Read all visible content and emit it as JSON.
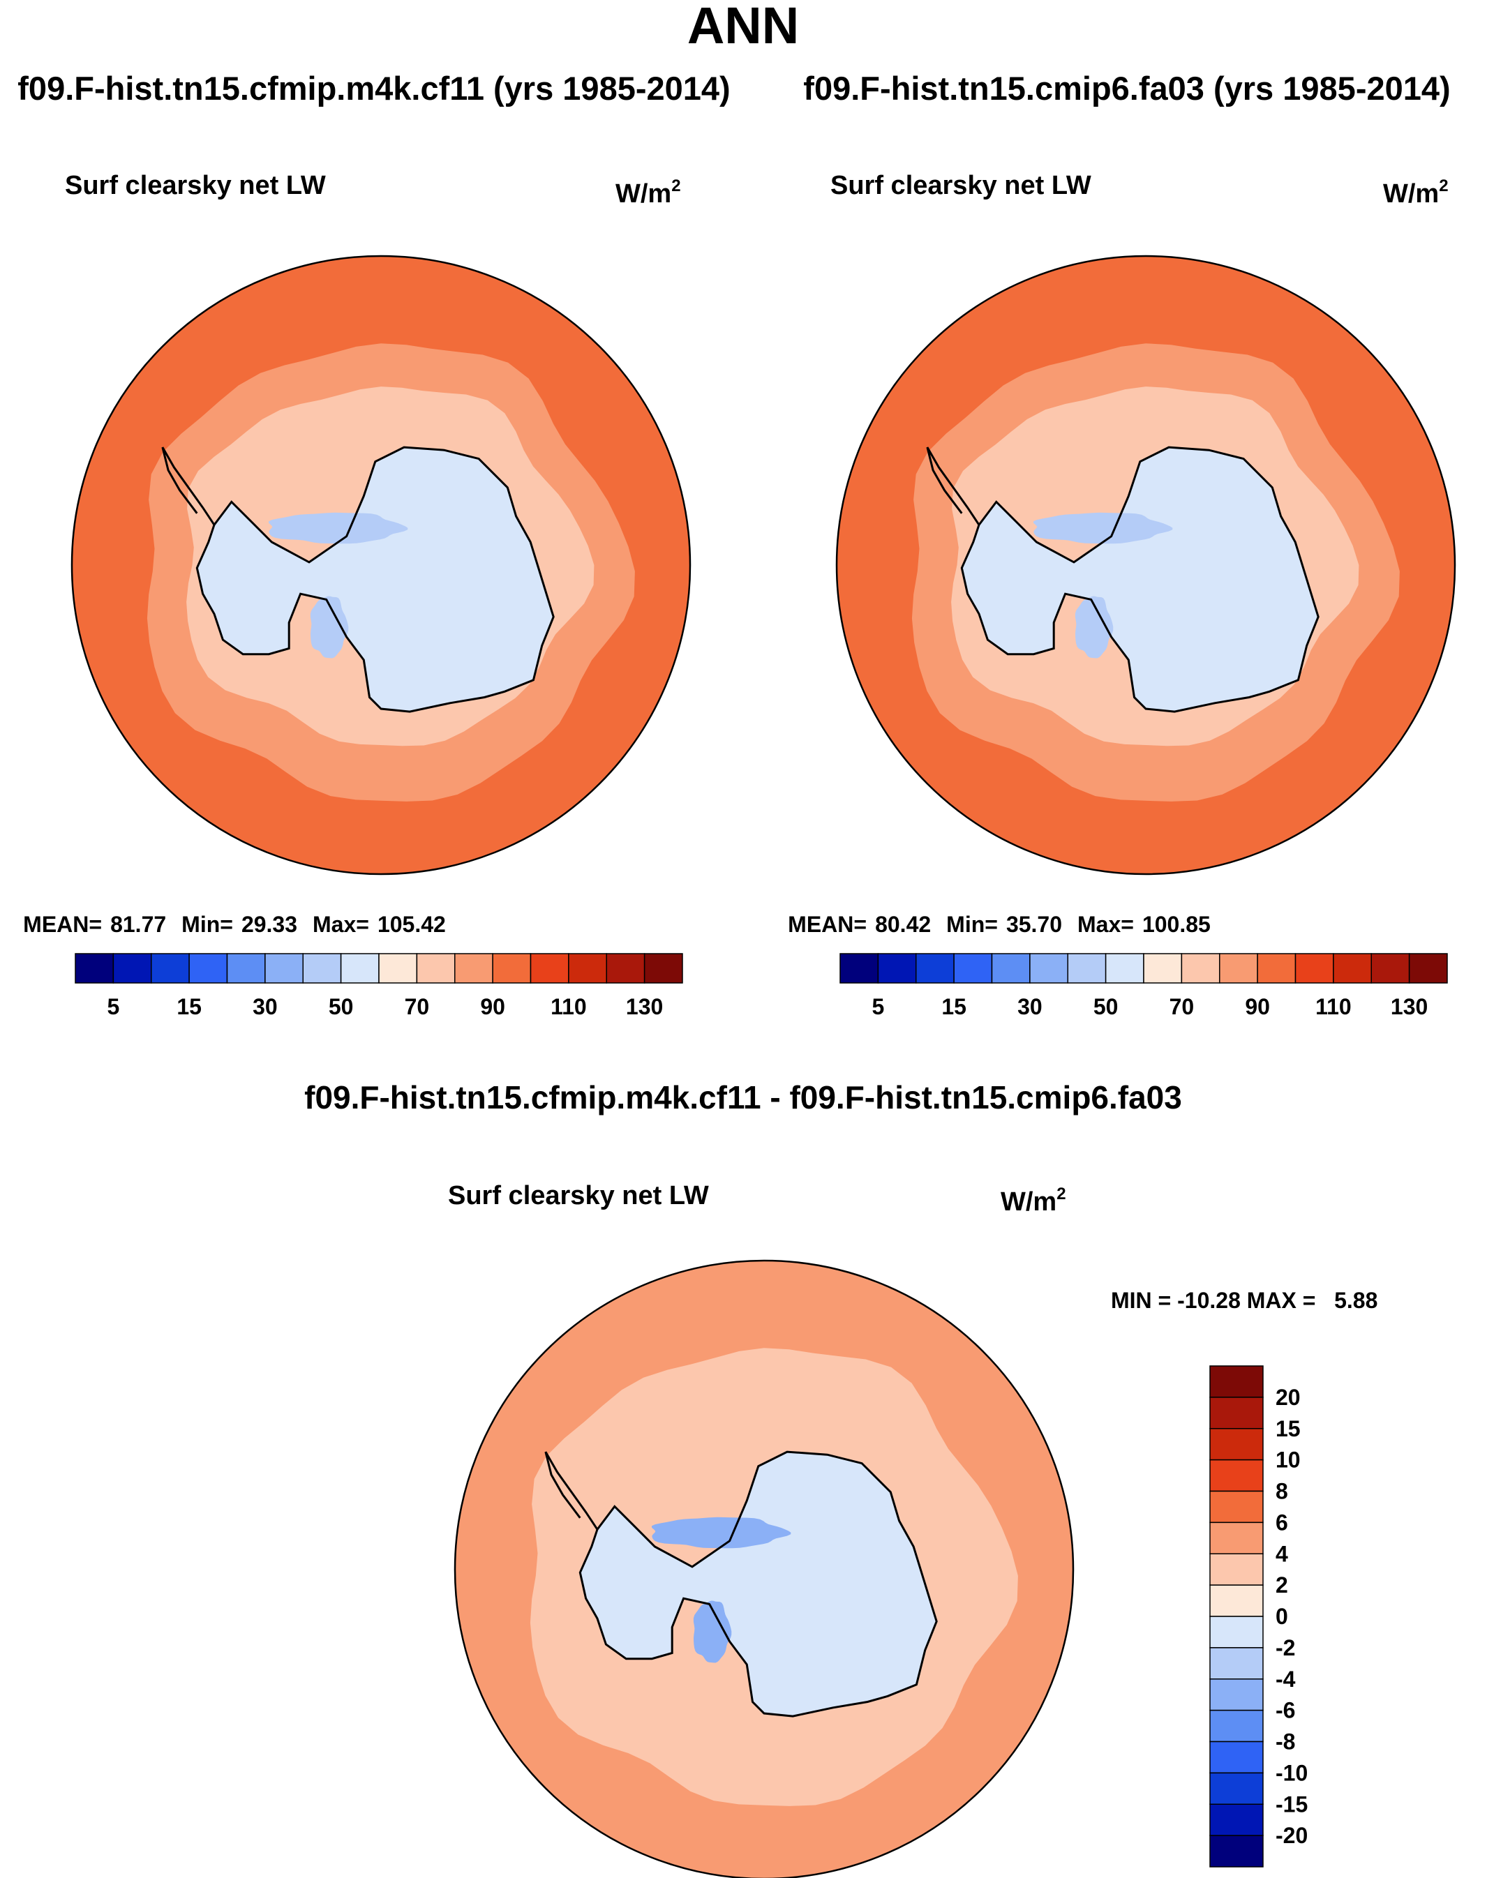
{
  "figure": {
    "season": "ANN",
    "field": "Surf clearsky net LW",
    "units": "W/m",
    "units_sup": "2",
    "diff_title": "f09.F-hist.tn15.cfmip.m4k.cf11 - f09.F-hist.tn15.cmip6.fa03",
    "diff_stats": "MIN = -10.28 MAX =   5.88"
  },
  "colors": {
    "abs": [
      "#00007c",
      "#0016b4",
      "#0d3ed7",
      "#2f63f5",
      "#5d8ef4",
      "#8bb0f6",
      "#b4ccf7",
      "#d7e6fa",
      "#fde8d8",
      "#fcc7ad",
      "#f89b72",
      "#f26c3a",
      "#e8411a",
      "#cc2a0c",
      "#a9180b",
      "#7d0a06"
    ],
    "diff": [
      "#00007c",
      "#0016b4",
      "#0d3ed7",
      "#2f63f5",
      "#5d8ef4",
      "#8bb0f6",
      "#b4ccf7",
      "#d7e6fa",
      "#fde8d8",
      "#fcc7ad",
      "#f89b72",
      "#f26c3a",
      "#e8411a",
      "#cc2a0c",
      "#a9180b",
      "#7d0a06"
    ]
  },
  "chart_data": [
    {
      "type": "heatmap",
      "projection": "south-polar-stereographic",
      "title": "f09.F-hist.tn15.cfmip.m4k.cf11 (yrs 1985-2014)",
      "variable": "Surf clearsky net LW",
      "units": "W/m2",
      "stats": {
        "mean": 81.77,
        "min": 29.33,
        "max": 105.42
      },
      "stats_label": {
        "mean": "MEAN=",
        "min": "Min=",
        "max": "Max="
      },
      "stats_text": {
        "mean": "81.77",
        "min": "29.33",
        "max": "105.42"
      },
      "colorbar_levels": [
        5,
        10,
        15,
        20,
        30,
        40,
        50,
        60,
        70,
        80,
        90,
        100,
        110,
        120,
        130
      ],
      "colorbar_tick_labels": [
        "5",
        "15",
        "30",
        "50",
        "70",
        "90",
        "110",
        "130"
      ],
      "colorbar_orientation": "horizontal",
      "levels_model": {
        "ocean_outer": 95,
        "ocean_band": 85,
        "coast_band": 75,
        "interior": 55,
        "minimum_zone": 45
      }
    },
    {
      "type": "heatmap",
      "projection": "south-polar-stereographic",
      "title": "f09.F-hist.tn15.cmip6.fa03 (yrs 1985-2014)",
      "variable": "Surf clearsky net LW",
      "units": "W/m2",
      "stats": {
        "mean": 80.42,
        "min": 35.7,
        "max": 100.85
      },
      "stats_label": {
        "mean": "MEAN=",
        "min": "Min=",
        "max": "Max="
      },
      "stats_text": {
        "mean": "80.42",
        "min": "35.70",
        "max": "100.85"
      },
      "colorbar_levels": [
        5,
        10,
        15,
        20,
        30,
        40,
        50,
        60,
        70,
        80,
        90,
        100,
        110,
        120,
        130
      ],
      "colorbar_tick_labels": [
        "5",
        "15",
        "30",
        "50",
        "70",
        "90",
        "110",
        "130"
      ],
      "colorbar_orientation": "horizontal",
      "levels_model": {
        "ocean_outer": 95,
        "ocean_band": 85,
        "coast_band": 75,
        "interior": 55,
        "minimum_zone": 45
      }
    },
    {
      "type": "heatmap",
      "projection": "south-polar-stereographic",
      "title": "f09.F-hist.tn15.cfmip.m4k.cf11 - f09.F-hist.tn15.cmip6.fa03",
      "variable": "Surf clearsky net LW",
      "units": "W/m2",
      "stats": {
        "min": -10.28,
        "max": 5.88
      },
      "colorbar_levels": [
        -20,
        -15,
        -10,
        -8,
        -6,
        -4,
        -2,
        0,
        2,
        4,
        6,
        8,
        10,
        15,
        20
      ],
      "colorbar_tick_labels": [
        "20",
        "15",
        "10",
        "8",
        "6",
        "4",
        "2",
        "0",
        "-2",
        "-4",
        "-6",
        "-8",
        "-10",
        "-15",
        "-20"
      ],
      "colorbar_orientation": "vertical",
      "levels_model": {
        "ocean_outer": 5,
        "ocean_band": 3,
        "interior": -1,
        "minimum_zone": -5
      }
    }
  ]
}
